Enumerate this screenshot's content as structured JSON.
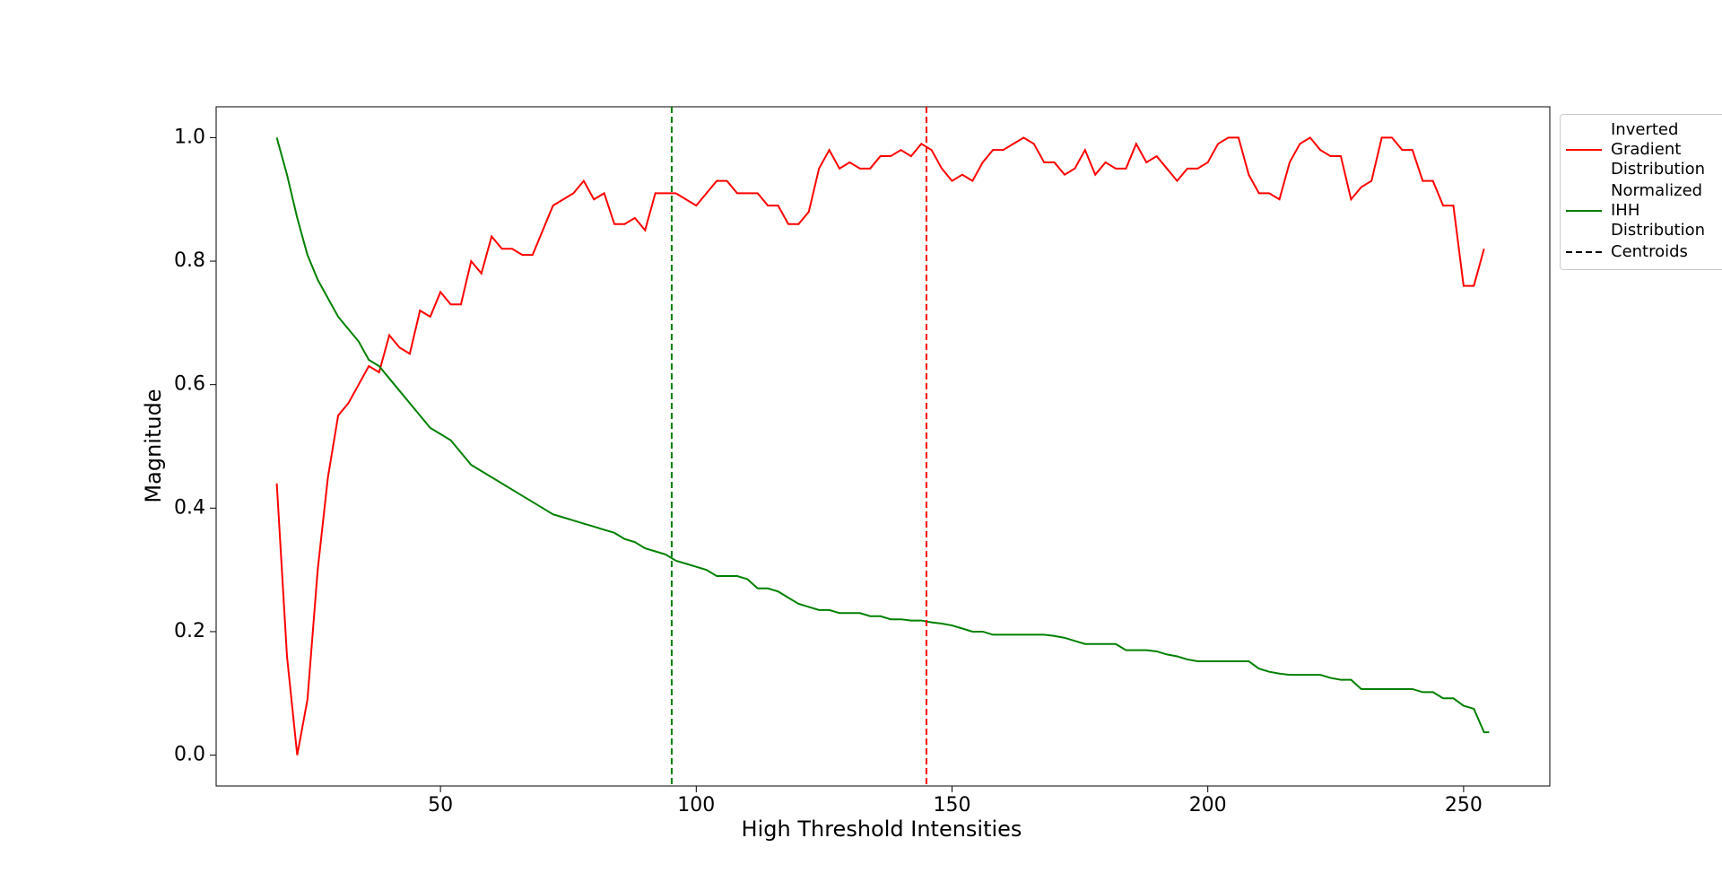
{
  "chart_data": {
    "type": "line",
    "xlabel": "High Threshold Intensities",
    "ylabel": "Magnitude",
    "x": [
      18,
      20,
      22,
      24,
      26,
      28,
      30,
      32,
      34,
      36,
      38,
      40,
      42,
      44,
      46,
      48,
      50,
      52,
      54,
      56,
      58,
      60,
      62,
      64,
      66,
      68,
      70,
      72,
      74,
      76,
      78,
      80,
      82,
      84,
      86,
      88,
      90,
      92,
      94,
      96,
      98,
      100,
      102,
      104,
      106,
      108,
      110,
      112,
      114,
      116,
      118,
      120,
      122,
      124,
      126,
      128,
      130,
      132,
      134,
      136,
      138,
      140,
      142,
      144,
      146,
      148,
      150,
      152,
      154,
      156,
      158,
      160,
      162,
      164,
      166,
      168,
      170,
      172,
      174,
      176,
      178,
      180,
      182,
      184,
      186,
      188,
      190,
      192,
      194,
      196,
      198,
      200,
      202,
      204,
      206,
      208,
      210,
      212,
      214,
      216,
      218,
      220,
      222,
      224,
      226,
      228,
      230,
      232,
      234,
      236,
      238,
      240,
      242,
      244,
      246,
      248,
      250,
      252,
      254,
      255
    ],
    "series": [
      {
        "name": "Inverted Gradient Distribution",
        "color": "#ff0000",
        "values": [
          0.44,
          0.16,
          0.0,
          0.09,
          0.3,
          0.45,
          0.55,
          0.57,
          0.6,
          0.63,
          0.62,
          0.68,
          0.66,
          0.65,
          0.72,
          0.71,
          0.75,
          0.73,
          0.73,
          0.8,
          0.78,
          0.84,
          0.82,
          0.82,
          0.81,
          0.81,
          0.85,
          0.89,
          0.9,
          0.91,
          0.93,
          0.9,
          0.91,
          0.86,
          0.86,
          0.87,
          0.85,
          0.91,
          0.91,
          0.91,
          0.9,
          0.89,
          0.91,
          0.93,
          0.93,
          0.91,
          0.91,
          0.91,
          0.89,
          0.89,
          0.86,
          0.86,
          0.88,
          0.95,
          0.98,
          0.95,
          0.96,
          0.95,
          0.95,
          0.97,
          0.97,
          0.98,
          0.97,
          0.99,
          0.98,
          0.95,
          0.93,
          0.94,
          0.93,
          0.96,
          0.98,
          0.98,
          0.99,
          1.0,
          0.99,
          0.96,
          0.96,
          0.94,
          0.95,
          0.98,
          0.94,
          0.96,
          0.95,
          0.95,
          0.99,
          0.96,
          0.97,
          0.95,
          0.93,
          0.95,
          0.95,
          0.96,
          0.99,
          1.0,
          1.0,
          0.94,
          0.91,
          0.91,
          0.9,
          0.96,
          0.99,
          1.0,
          0.98,
          0.97,
          0.97,
          0.9,
          0.92,
          0.93,
          1.0,
          1.0,
          0.98,
          0.98,
          0.93,
          0.93,
          0.89,
          0.89,
          0.76,
          0.76,
          0.82,
          null
        ]
      },
      {
        "name": "Normalized IHH Distribution",
        "color": "#008000",
        "values": [
          1.0,
          0.94,
          0.87,
          0.81,
          0.77,
          0.74,
          0.71,
          0.69,
          0.67,
          0.64,
          0.63,
          0.61,
          0.59,
          0.57,
          0.55,
          0.53,
          0.52,
          0.51,
          0.49,
          0.47,
          0.46,
          0.45,
          0.44,
          0.43,
          0.42,
          0.41,
          0.4,
          0.39,
          0.385,
          0.38,
          0.375,
          0.37,
          0.365,
          0.36,
          0.35,
          0.345,
          0.335,
          0.33,
          0.325,
          0.315,
          0.31,
          0.305,
          0.3,
          0.29,
          0.29,
          0.29,
          0.285,
          0.27,
          0.27,
          0.265,
          0.255,
          0.245,
          0.24,
          0.235,
          0.235,
          0.23,
          0.23,
          0.23,
          0.225,
          0.225,
          0.22,
          0.22,
          0.218,
          0.218,
          0.215,
          0.213,
          0.21,
          0.205,
          0.2,
          0.2,
          0.195,
          0.195,
          0.195,
          0.195,
          0.195,
          0.195,
          0.193,
          0.19,
          0.185,
          0.18,
          0.18,
          0.18,
          0.18,
          0.17,
          0.17,
          0.17,
          0.168,
          0.163,
          0.16,
          0.155,
          0.152,
          0.152,
          0.152,
          0.152,
          0.152,
          0.152,
          0.14,
          0.135,
          0.132,
          0.13,
          0.13,
          0.13,
          0.13,
          0.125,
          0.122,
          0.122,
          0.107,
          0.107,
          0.107,
          0.107,
          0.107,
          0.107,
          0.102,
          0.102,
          0.092,
          0.092,
          0.08,
          0.075,
          0.037,
          0.037
        ]
      }
    ],
    "centroids_label": "Centroids",
    "centroids": [
      {
        "x": 95.2,
        "color": "#008000"
      },
      {
        "x": 145,
        "color": "#ff0000"
      }
    ],
    "xlim": [
      6.15,
      266.85
    ],
    "xticks": [
      50,
      100,
      150,
      200,
      250
    ],
    "ylim": [
      -0.05,
      1.05
    ],
    "yticks": [
      {
        "value": 0,
        "label": "0.0"
      },
      0.2,
      0.4,
      0.6,
      0.8,
      {
        "value": 1,
        "label": "1.0"
      }
    ],
    "legend": "outside-upper-right"
  }
}
